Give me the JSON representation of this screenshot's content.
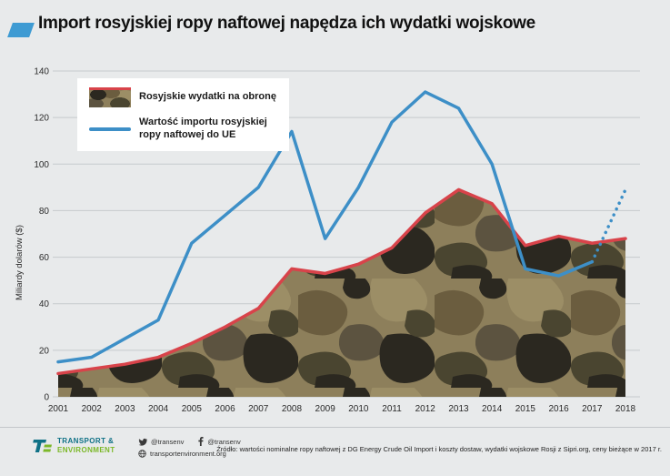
{
  "header": {
    "title": "Import rosyjskiej ropy naftowej napędza ich wydatki wojskowe"
  },
  "chart_data": {
    "type": "line",
    "title": "Import rosyjskiej ropy naftowej napędza ich wydatki wojskowe",
    "categories": [
      "2001",
      "2002",
      "2003",
      "2004",
      "2005",
      "2006",
      "2007",
      "2008",
      "2009",
      "2010",
      "2011",
      "2012",
      "2013",
      "2014",
      "2015",
      "2016",
      "2017",
      "2018"
    ],
    "series": [
      {
        "name": "Rosyjskie wydatki na obronę",
        "style": "area-camo-fill-red-edge",
        "color": "#d8434a",
        "values": [
          10,
          12,
          14,
          17,
          23,
          30,
          38,
          55,
          53,
          57,
          64,
          79,
          89,
          83,
          65,
          69,
          66,
          68
        ]
      },
      {
        "name": "Wartość importu rosyjskiej ropy naftowej do UE",
        "style": "line",
        "color": "#3d8fc7",
        "values": [
          15,
          17,
          25,
          33,
          66,
          78,
          90,
          114,
          68,
          90,
          118,
          131,
          124,
          100,
          55,
          52,
          58,
          89
        ],
        "dashed_from_index": 16
      }
    ],
    "xlabel": "",
    "ylabel": "Miliardy dolarów ($)",
    "ylim": [
      0,
      140
    ],
    "yticks": [
      0,
      20,
      40,
      60,
      80,
      100,
      120,
      140
    ],
    "grid": true,
    "legend_position": "top-left"
  },
  "legend": {
    "items": [
      {
        "label": "Rosyjskie wydatki na obronę",
        "swatch": "camo-red-edge"
      },
      {
        "label": "Wartość importu rosyjskiej ropy naftowej do UE",
        "swatch": "blue-line"
      }
    ]
  },
  "footer": {
    "logo_line1": "TRANSPORT &",
    "logo_line2": "ENVIRONMENT",
    "twitter_handle": "@transenv",
    "facebook_handle": "@transenv",
    "website": "transportenvironment.org",
    "source": "Źródło: wartości nominalne ropy naftowej z DG Energy Crude Oil Import i koszty dostaw, wydatki wojskowe Rosji z Sipri.org, ceny bieżące w 2017 r."
  },
  "colors": {
    "background": "#e8eaeb",
    "accent_blue": "#3e9bd3",
    "grid": "#c6cacd",
    "tick_text": "#2b2b2b",
    "red_line": "#d8434a",
    "blue_line": "#3d8fc7",
    "camo_base": "#8d7f5b",
    "camo": [
      "#6b5d3f",
      "#4a4530",
      "#2b2820",
      "#9c8e66",
      "#5c5340"
    ],
    "logo_teal": "#0f7186",
    "logo_green": "#7cb829"
  }
}
